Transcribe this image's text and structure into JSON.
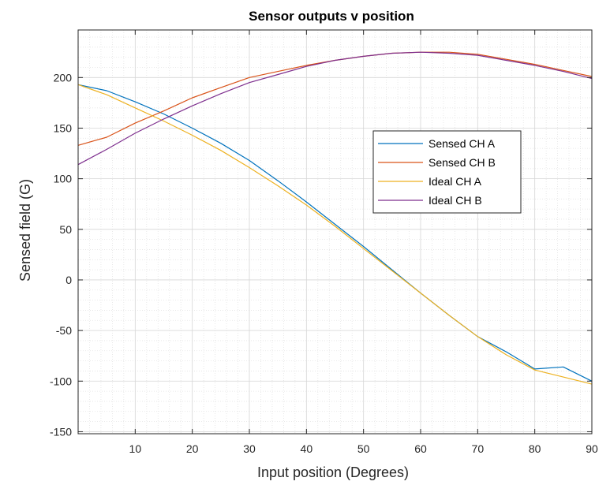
{
  "chart_data": {
    "type": "line",
    "title": "Sensor outputs v position",
    "xlabel": "Input position (Degrees)",
    "ylabel": "Sensed field (G)",
    "xlim": [
      0,
      90
    ],
    "ylim": [
      -152,
      247
    ],
    "xticks": [
      10,
      20,
      30,
      40,
      50,
      60,
      70,
      80,
      90
    ],
    "yticks": [
      -150,
      -100,
      -50,
      0,
      50,
      100,
      150,
      200
    ],
    "grid": true,
    "minor_grid": true,
    "legend_position": "center-right",
    "series": [
      {
        "name": "Sensed CH A",
        "color": "#0072BD",
        "x": [
          0,
          5,
          10,
          15,
          20,
          25,
          30,
          35,
          40,
          45,
          50,
          55,
          60,
          65,
          70,
          75,
          80,
          85,
          90
        ],
        "y": [
          193,
          187,
          176,
          164,
          150,
          135,
          118,
          98,
          77,
          55,
          33,
          10,
          -13,
          -35,
          -56,
          -71,
          -88,
          -86,
          -100
        ]
      },
      {
        "name": "Sensed CH B",
        "color": "#D95319",
        "x": [
          0,
          5,
          10,
          15,
          20,
          25,
          30,
          35,
          40,
          45,
          50,
          55,
          60,
          65,
          70,
          75,
          80,
          85,
          90
        ],
        "y": [
          133,
          141,
          155,
          167,
          180,
          190,
          200,
          206,
          212,
          217,
          221,
          224,
          225,
          225,
          223,
          218,
          213,
          207,
          201
        ]
      },
      {
        "name": "Ideal CH A",
        "color": "#EDB120",
        "x": [
          0,
          5,
          10,
          15,
          20,
          25,
          30,
          35,
          40,
          45,
          50,
          55,
          60,
          65,
          70,
          75,
          80,
          85,
          90
        ],
        "y": [
          193,
          183,
          170,
          157,
          143,
          128,
          111,
          93,
          74,
          53,
          31,
          9,
          -13,
          -35,
          -56,
          -74,
          -89,
          -96,
          -103
        ]
      },
      {
        "name": "Ideal CH B",
        "color": "#7E2F8E",
        "x": [
          0,
          5,
          10,
          15,
          20,
          25,
          30,
          35,
          40,
          45,
          50,
          55,
          60,
          65,
          70,
          75,
          80,
          85,
          90
        ],
        "y": [
          114,
          129,
          145,
          159,
          172,
          184,
          195,
          203,
          211,
          217,
          221,
          224,
          225,
          224,
          222,
          217,
          212,
          206,
          199
        ]
      }
    ]
  }
}
